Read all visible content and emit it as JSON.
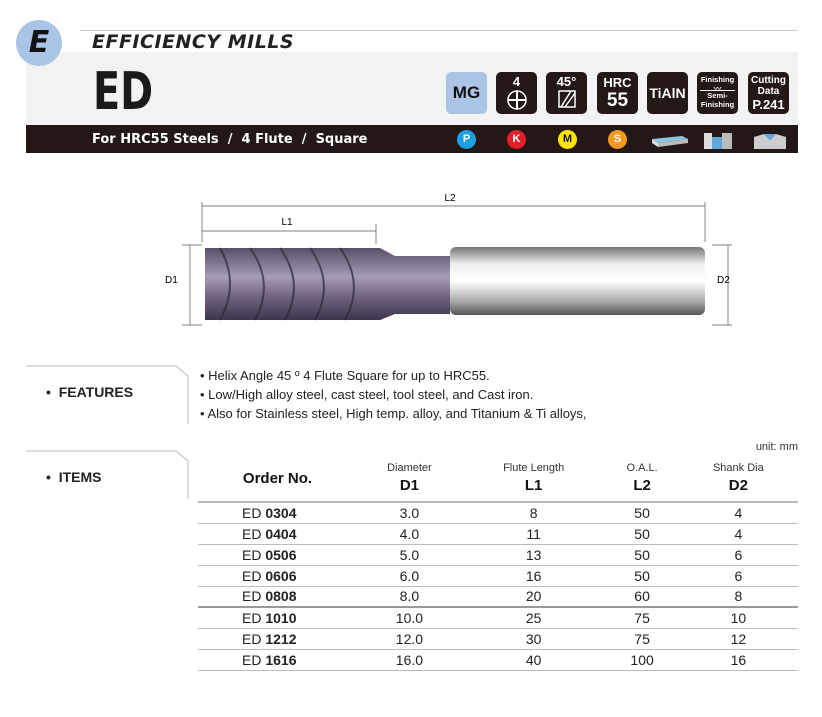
{
  "header": {
    "section_letter": "E",
    "family": "EFFICIENCY MILLS",
    "model": "ED",
    "subtitle": "For HRC55 Steels  /  4 Flute  /  Square"
  },
  "badges": [
    {
      "name": "mg",
      "line1": "MG"
    },
    {
      "name": "flutes",
      "line1": "4",
      "icon": "four-flute-cross-section-icon"
    },
    {
      "name": "helix",
      "line1": "45°",
      "icon": "helix-angle-icon"
    },
    {
      "name": "hardness",
      "line1": "HRC",
      "line2": "55"
    },
    {
      "name": "coating",
      "line1": "TiAlN"
    },
    {
      "name": "finishing",
      "line1": "Finishing",
      "line2": "Semi-",
      "line3": "Finishing"
    },
    {
      "name": "cutting-data",
      "line1": "Cutting",
      "line2": "Data",
      "line3": "P.241"
    }
  ],
  "materials": [
    {
      "letter": "P",
      "color": "#1ca0e3"
    },
    {
      "letter": "K",
      "color": "#e2202a"
    },
    {
      "letter": "M",
      "color": "#ffe500"
    },
    {
      "letter": "S",
      "color": "#f39a1e"
    }
  ],
  "drawing": {
    "l2": "L2",
    "l1": "L1",
    "d1": "D1",
    "d2": "D2"
  },
  "features": {
    "label": "FEATURES",
    "items": [
      "Helix Angle 45 º  4 Flute Square for up to HRC55.",
      "Low/High alloy steel, cast steel, tool steel, and Cast iron.",
      "Also for Stainless steel, High temp. alloy, and Titanium & Ti alloys,"
    ]
  },
  "items": {
    "label": "ITEMS",
    "unit": "unit: mm",
    "columns": [
      {
        "top": "",
        "main": "Order No."
      },
      {
        "top": "Diameter",
        "main": "D1"
      },
      {
        "top": "Flute Length",
        "main": "L1"
      },
      {
        "top": "O.A.L.",
        "main": "L2"
      },
      {
        "top": "Shank Dia",
        "main": "D2"
      }
    ],
    "rows": [
      {
        "prefix": "ED",
        "code": "0304",
        "d1": "3.0",
        "l1": "8",
        "l2": "50",
        "d2": "4"
      },
      {
        "prefix": "ED",
        "code": "0404",
        "d1": "4.0",
        "l1": "11",
        "l2": "50",
        "d2": "4"
      },
      {
        "prefix": "ED",
        "code": "0506",
        "d1": "5.0",
        "l1": "13",
        "l2": "50",
        "d2": "6"
      },
      {
        "prefix": "ED",
        "code": "0606",
        "d1": "6.0",
        "l1": "16",
        "l2": "50",
        "d2": "6"
      },
      {
        "prefix": "ED",
        "code": "0808",
        "d1": "8.0",
        "l1": "20",
        "l2": "60",
        "d2": "8"
      },
      {
        "prefix": "ED",
        "code": "1010",
        "d1": "10.0",
        "l1": "25",
        "l2": "75",
        "d2": "10"
      },
      {
        "prefix": "ED",
        "code": "1212",
        "d1": "12.0",
        "l1": "30",
        "l2": "75",
        "d2": "12"
      },
      {
        "prefix": "ED",
        "code": "1616",
        "d1": "16.0",
        "l1": "40",
        "l2": "100",
        "d2": "16"
      }
    ]
  }
}
